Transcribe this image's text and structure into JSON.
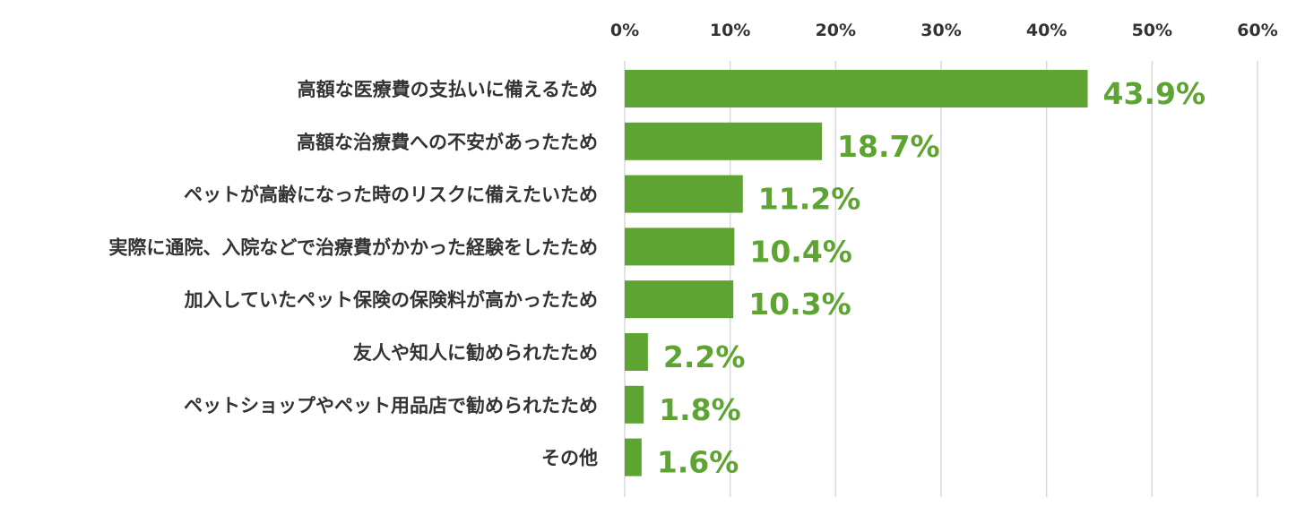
{
  "chart_data": {
    "type": "bar",
    "orientation": "horizontal",
    "categories": [
      "高額な医療費の支払いに備えるため",
      "高額な治療費への不安があったため",
      "ペットが高齢になった時のリスクに備えたいため",
      "実際に通院、入院などで治療費がかかった経験をしたため",
      "加入していたペット保険の保険料が高かったため",
      "友人や知人に勧められたため",
      "ペットショップやペット用品店で勧められたため",
      "その他"
    ],
    "values": [
      43.9,
      18.7,
      11.2,
      10.4,
      10.3,
      2.2,
      1.8,
      1.6
    ],
    "value_labels": [
      "43.9%",
      "18.7%",
      "11.2%",
      "10.4%",
      "10.3%",
      "2.2%",
      "1.8%",
      "1.6%"
    ],
    "xticks": [
      0,
      10,
      20,
      30,
      40,
      50,
      60
    ],
    "xtick_labels": [
      "0%",
      "10%",
      "20%",
      "30%",
      "40%",
      "50%",
      "60%"
    ],
    "xlim": [
      0,
      60
    ],
    "x_axis_position": "top",
    "grid": true,
    "colors": {
      "bar": "#5ea433",
      "label": "#5ea433",
      "text": "#333333",
      "grid": "#d9d9d9"
    }
  }
}
